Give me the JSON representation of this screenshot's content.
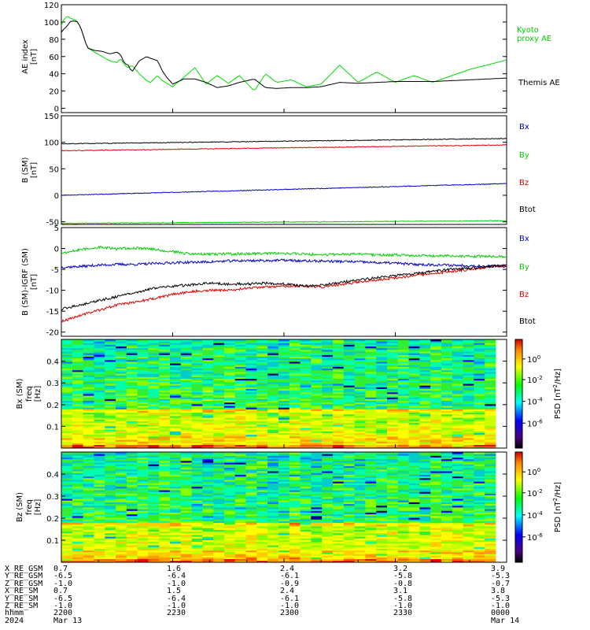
{
  "chart_data": [
    {
      "type": "line",
      "ylabel": "AE index [nT]",
      "ylim": [
        -5,
        120
      ],
      "yticks": [
        0,
        20,
        40,
        60,
        80,
        100,
        120
      ],
      "x": [
        0,
        0.7,
        1.5,
        2.5,
        3.5,
        4.5,
        5.5,
        7,
        9,
        11,
        13,
        15,
        16,
        17,
        18,
        19,
        21,
        23,
        24,
        26,
        27,
        28,
        30,
        33,
        36,
        39,
        42,
        45,
        48,
        52,
        55,
        58,
        62,
        66,
        70,
        75,
        80,
        85,
        90,
        95,
        100,
        110,
        120
      ],
      "series": [
        {
          "name": "Kyoto proxy AE",
          "color": "#00dd00",
          "values": [
            96,
            103,
            107,
            104,
            103,
            100,
            90,
            70,
            65,
            60,
            55,
            53,
            58,
            50,
            47,
            50,
            40,
            32,
            30,
            38,
            33,
            30,
            25,
            36,
            47,
            28,
            38,
            29,
            38,
            20,
            40,
            30,
            33,
            25,
            28,
            50,
            30,
            42,
            30,
            38,
            30,
            45,
            56
          ]
        },
        {
          "name": "Themis AE",
          "color": "#000000",
          "values": [
            88,
            92,
            95,
            101,
            101,
            100,
            90,
            70,
            67,
            66,
            63,
            65,
            62,
            52,
            50,
            42,
            55,
            60,
            58,
            55,
            45,
            38,
            28,
            34,
            34,
            30,
            24,
            26,
            30,
            34,
            24,
            23,
            24,
            24,
            25,
            30,
            29,
            30,
            31,
            31,
            31,
            33,
            35
          ]
        }
      ]
    },
    {
      "type": "line",
      "ylabel": "B (SM) [nT]",
      "ylim": [
        -55,
        150
      ],
      "yticks": [
        -50,
        0,
        50,
        100,
        150
      ],
      "x": [
        0,
        120
      ],
      "series": [
        {
          "name": "Bx",
          "color": "#0000cc",
          "values": [
            0,
            22
          ]
        },
        {
          "name": "By",
          "color": "#00cc00",
          "values": [
            -53,
            -48
          ]
        },
        {
          "name": "Bz",
          "color": "#dd0000",
          "values": [
            84,
            95
          ]
        },
        {
          "name": "Btot",
          "color": "#000000",
          "values": [
            97,
            107
          ]
        }
      ]
    },
    {
      "type": "line",
      "ylabel": "B (SM)-IGRF (SM) [nT]",
      "ylim": [
        -21,
        5
      ],
      "yticks": [
        -20,
        -15,
        -10,
        -5,
        0,
        5
      ],
      "x": [
        0,
        5,
        10,
        15,
        20,
        25,
        30,
        35,
        40,
        45,
        50,
        55,
        60,
        65,
        70,
        75,
        80,
        85,
        90,
        95,
        100,
        105,
        110,
        115,
        120
      ],
      "series": [
        {
          "name": "Bx",
          "color": "#0000cc",
          "values": [
            -4.5,
            -4.3,
            -4.0,
            -3.8,
            -3.8,
            -3.6,
            -3.4,
            -3.3,
            -3.2,
            -3.0,
            -2.9,
            -2.9,
            -2.8,
            -3.0,
            -3.0,
            -3.1,
            -3.2,
            -3.4,
            -3.5,
            -3.8,
            -3.9,
            -4.0,
            -4.1,
            -4.2,
            -4.3
          ]
        },
        {
          "name": "By",
          "color": "#00cc00",
          "values": [
            -1.2,
            -0.3,
            0.3,
            -0.1,
            0.1,
            -0.2,
            -0.8,
            -1.3,
            -1.4,
            -1.3,
            -1.3,
            -1.2,
            -1.2,
            -1.3,
            -1.5,
            -1.4,
            -1.3,
            -1.6,
            -1.5,
            -1.7,
            -1.8,
            -1.8,
            -1.9,
            -1.9,
            -2.0
          ]
        },
        {
          "name": "Bz",
          "color": "#dd0000",
          "values": [
            -17.5,
            -16.0,
            -14.8,
            -13.5,
            -12.8,
            -12.0,
            -11.0,
            -10.3,
            -10.0,
            -10.0,
            -9.5,
            -9.2,
            -9.0,
            -9.0,
            -9.2,
            -8.7,
            -8.0,
            -7.5,
            -7.0,
            -6.5,
            -6.0,
            -5.5,
            -5.0,
            -4.5,
            -4.0
          ]
        },
        {
          "name": "Btot",
          "color": "#000000",
          "values": [
            -14.5,
            -13.5,
            -12.5,
            -11.5,
            -10.5,
            -9.5,
            -9.0,
            -8.7,
            -8.3,
            -8.5,
            -8.5,
            -8.3,
            -8.5,
            -9.0,
            -8.8,
            -8.2,
            -7.5,
            -7.0,
            -6.5,
            -6.0,
            -5.5,
            -5.0,
            -4.7,
            -4.3,
            -4.0
          ]
        }
      ]
    },
    {
      "type": "heatmap",
      "ylabel": "Bx (SM) freq [Hz]",
      "ylim": [
        0,
        0.5
      ],
      "yticks": [
        0.1,
        0.2,
        0.3,
        0.4
      ],
      "colorbar_label": "PSD [nT^2/Hz]",
      "colorbar_ticks": [
        "10^0",
        "10^-2",
        "10^-4",
        "10^-6"
      ]
    },
    {
      "type": "heatmap",
      "ylabel": "Bz (SM) freq [Hz]",
      "ylim": [
        0,
        0.5
      ],
      "yticks": [
        0.1,
        0.2,
        0.3,
        0.4
      ],
      "colorbar_label": "PSD [nT^2/Hz]",
      "colorbar_ticks": [
        "10^0",
        "10^-2",
        "10^-4",
        "10^-6"
      ]
    }
  ],
  "labels": {
    "ae_ylabel": "AE index",
    "ae_units": "[nT]",
    "kyoto_line1": "Kyoto",
    "kyoto_line2": "proxy AE",
    "themis": "Themis AE",
    "b_ylabel": "B (SM)",
    "b_units": "[nT]",
    "db_ylabel": "B (SM)-IGRF (SM)",
    "db_units": "[nT]",
    "bx_comp": "Bx (SM)",
    "bz_comp": "Bz (SM)",
    "freq_label": "freq",
    "hz_units": "[Hz]",
    "psd_label": "PSD [nT",
    "psd_sup": "2",
    "psd_end": "/Hz]",
    "cb_exp": [
      "0",
      "-2",
      "-4",
      "-6"
    ],
    "cb_base": "10",
    "legend": [
      "Bx",
      "By",
      "Bz",
      "Btot"
    ]
  },
  "ephemeris": {
    "rows": [
      {
        "label": "X_RE_GSM",
        "values": [
          "0.7",
          "1.6",
          "2.4",
          "3.2",
          "3.9"
        ]
      },
      {
        "label": "Y_RE_GSM",
        "values": [
          "-6.5",
          "-6.4",
          "-6.1",
          "-5.8",
          "-5.3"
        ]
      },
      {
        "label": "Z_RE_GSM",
        "values": [
          "-1.0",
          "-1.0",
          "-0.9",
          "-0.8",
          "-0.7"
        ]
      },
      {
        "label": "X_RE_SM",
        "values": [
          "0.7",
          "1.5",
          "2.4",
          "3.1",
          "3.8"
        ]
      },
      {
        "label": "Y_RE_SM",
        "values": [
          "-6.5",
          "-6.4",
          "-6.1",
          "-5.8",
          "-5.3"
        ]
      },
      {
        "label": "Z_RE_SM",
        "values": [
          "-1.0",
          "-1.0",
          "-1.0",
          "-1.0",
          "-1.0"
        ]
      },
      {
        "label": "hhmm",
        "values": [
          "2200",
          "2230",
          "2300",
          "2330",
          "0000"
        ]
      },
      {
        "label": "2024",
        "values": [
          "Mar 13",
          "",
          "",
          "",
          "Mar 14"
        ]
      }
    ]
  }
}
